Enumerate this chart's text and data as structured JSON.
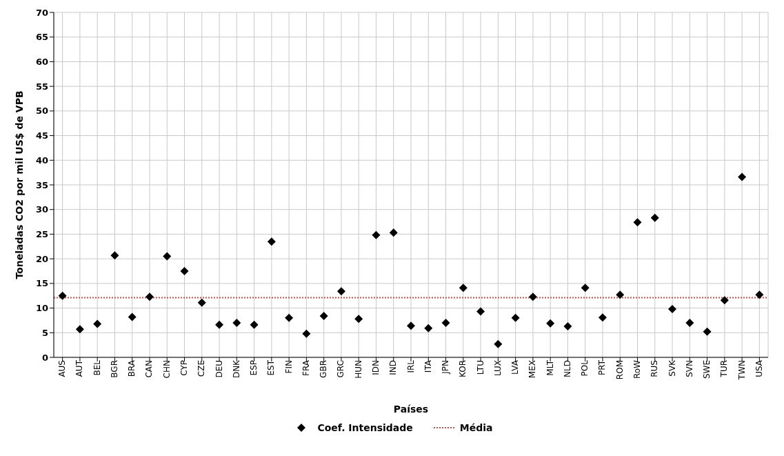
{
  "chart_data": {
    "type": "scatter",
    "xlabel": "Países",
    "ylabel": "Toneladas CO2 por mil US$ de VPB",
    "categories": [
      "AUS",
      "AUT",
      "BEL",
      "BGR",
      "BRA",
      "CAN",
      "CHN",
      "CYP",
      "CZE",
      "DEU",
      "DNK",
      "ESP",
      "EST",
      "FIN",
      "FRA",
      "GBR",
      "GRC",
      "HUN",
      "IDN",
      "IND",
      "IRL",
      "ITA",
      "JPN",
      "KOR",
      "LTU",
      "LUX",
      "LVA",
      "MEX",
      "MLT",
      "NLD",
      "POL",
      "PRT",
      "ROM",
      "RoW",
      "RUS",
      "SVK",
      "SVN",
      "SWE",
      "TUR",
      "TWN",
      "USA"
    ],
    "series": [
      {
        "name": "Coef. Intensidade",
        "color": "#000000",
        "values": [
          12.5,
          5.7,
          6.8,
          20.7,
          8.2,
          12.3,
          20.5,
          17.5,
          11.1,
          6.6,
          7.0,
          6.6,
          23.5,
          8.0,
          4.8,
          8.4,
          13.4,
          7.8,
          24.8,
          25.3,
          6.4,
          5.9,
          7.0,
          14.1,
          9.3,
          2.7,
          8.0,
          12.3,
          6.9,
          6.3,
          14.1,
          8.1,
          12.7,
          27.4,
          28.3,
          9.8,
          7.0,
          5.2,
          11.6,
          36.6,
          12.7
        ]
      }
    ],
    "ref_lines": [
      {
        "axis": "y",
        "value": 12.1,
        "label": "Média",
        "color": "#c0504d",
        "line_style": "dotted"
      }
    ],
    "ylim": [
      0,
      70
    ],
    "yticks": [
      0,
      5,
      10,
      15,
      20,
      25,
      30,
      35,
      40,
      45,
      50,
      55,
      60,
      65,
      70
    ],
    "grid": true,
    "legend": "bottom",
    "marker": "diamond"
  }
}
